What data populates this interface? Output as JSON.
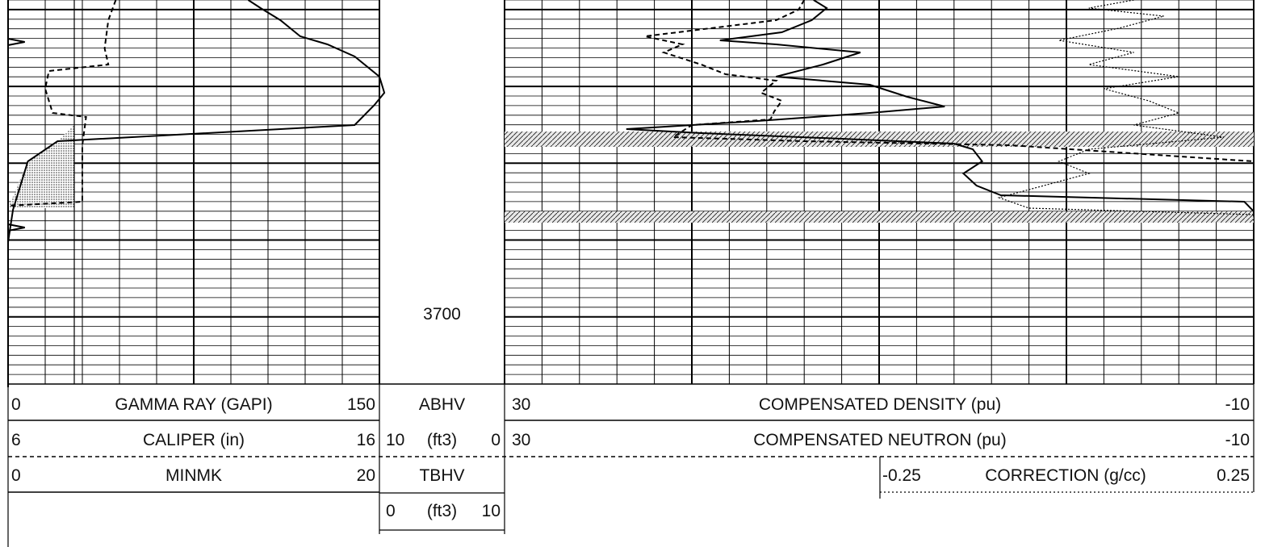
{
  "colors": {
    "ink": "#000000",
    "grid": "#1a1a1a",
    "shade": "#bdbdbd",
    "paper": "#ffffff"
  },
  "depth": {
    "label": "3700"
  },
  "header": {
    "gamma_ray": {
      "min": "0",
      "title": "GAMMA RAY (GAPI)",
      "max": "150"
    },
    "caliper": {
      "min": "6",
      "title": "CALIPER (in)",
      "max": "16"
    },
    "minmk": {
      "min": "0",
      "title": "MINMK",
      "max": "20"
    },
    "abhv": {
      "title": "ABHV",
      "min": "10",
      "unit": "(ft3)",
      "max": "0"
    },
    "tbhv": {
      "title": "TBHV",
      "min": "0",
      "unit": "(ft3)",
      "max": "10"
    },
    "density": {
      "min": "30",
      "title": "COMPENSATED DENSITY (pu)",
      "max": "-10"
    },
    "neutron": {
      "min": "30",
      "title": "COMPENSATED NEUTRON (pu)",
      "max": "-10"
    },
    "correction": {
      "min": "-0.25",
      "title": "CORRECTION (g/cc)",
      "max": "0.25"
    }
  },
  "chart_data": {
    "type": "line",
    "depth_axis": {
      "label": "3700",
      "direction": "down"
    },
    "tracks": [
      {
        "name": "track-1",
        "series": [
          {
            "name": "GAMMA RAY (GAPI)",
            "range": [
              0,
              150
            ],
            "line": "solid",
            "points": [
              [
                0,
                97
              ],
              [
                10,
                102
              ],
              [
                25,
                110
              ],
              [
                45,
                118
              ],
              [
                55,
                129
              ],
              [
                70,
                140
              ],
              [
                95,
                150
              ],
              [
                115,
                152
              ],
              [
                130,
                148
              ],
              [
                155,
                140
              ],
              [
                175,
                20
              ],
              [
                200,
                8
              ],
              [
                260,
                2
              ],
              [
                300,
                0
              ],
              [
                480,
                0
              ]
            ]
          },
          {
            "name": "CALIPER (in)",
            "range": [
              6,
              16
            ],
            "line": "dashed",
            "points": [
              [
                0,
                8.9
              ],
              [
                25,
                8.7
              ],
              [
                60,
                8.6
              ],
              [
                80,
                8.7
              ],
              [
                88,
                7.1
              ],
              [
                110,
                7.0
              ],
              [
                140,
                7.2
              ],
              [
                145,
                8.1
              ],
              [
                180,
                8.0
              ],
              [
                250,
                8.0
              ],
              [
                255,
                6.0
              ],
              [
                480,
                6.0
              ]
            ]
          },
          {
            "name": "MINMK",
            "range": [
              0,
              20
            ],
            "line": "solid",
            "points": [
              [
                48,
                0.0
              ],
              [
                52,
                0.9
              ],
              [
                56,
                0.0
              ],
              [
                278,
                0.0
              ],
              [
                282,
                0.9
              ],
              [
                286,
                0.0
              ]
            ]
          }
        ],
        "shading": {
          "between": [
            "GAMMA RAY (GAPI)",
            "bit size"
          ],
          "depth_range": [
            85,
            258
          ]
        }
      },
      {
        "name": "track-2",
        "series": [
          {
            "name": "ABHV",
            "range": [
              10,
              0
            ],
            "unit": "ft3",
            "points": []
          },
          {
            "name": "TBHV",
            "range": [
              0,
              10
            ],
            "unit": "ft3",
            "points": []
          }
        ]
      },
      {
        "name": "track-3",
        "series": [
          {
            "name": "COMPENSATED DENSITY (pu)",
            "range": [
              30,
              -10
            ],
            "line": "solid",
            "points": [
              [
                0,
                13.5
              ],
              [
                10,
                12.8
              ],
              [
                25,
                13.6
              ],
              [
                40,
                15.2
              ],
              [
                50,
                18.5
              ],
              [
                55,
                15.5
              ],
              [
                65,
                11.0
              ],
              [
                80,
                13.0
              ],
              [
                95,
                15.5
              ],
              [
                105,
                10.5
              ],
              [
                120,
                8.5
              ],
              [
                132,
                6.5
              ],
              [
                140,
                10.5
              ],
              [
                150,
                16.5
              ],
              [
                160,
                23.5
              ],
              [
                165,
                19.5
              ],
              [
                172,
                12.0
              ],
              [
                178,
                6.0
              ],
              [
                185,
                5.0
              ],
              [
                200,
                4.5
              ],
              [
                215,
                5.5
              ],
              [
                230,
                4.8
              ],
              [
                242,
                3.5
              ],
              [
                250,
                -9.5
              ],
              [
                262,
                -10.0
              ],
              [
                268,
                -10.0
              ]
            ]
          },
          {
            "name": "COMPENSATED NEUTRON (pu)",
            "range": [
              30,
              -10
            ],
            "line": "dashed",
            "points": [
              [
                0,
                14.0
              ],
              [
                12,
                14.3
              ],
              [
                25,
                15.5
              ],
              [
                45,
                22.5
              ],
              [
                55,
                20.5
              ],
              [
                65,
                21.5
              ],
              [
                80,
                19.5
              ],
              [
                92,
                18.2
              ],
              [
                100,
                15.5
              ],
              [
                115,
                16.3
              ],
              [
                125,
                15.2
              ],
              [
                138,
                15.6
              ],
              [
                148,
                15.8
              ],
              [
                155,
                20.0
              ],
              [
                170,
                21.0
              ],
              [
                175,
                14.0
              ],
              [
                180,
                3.0
              ],
              [
                200,
                -10.0
              ],
              [
                265,
                -10.0
              ]
            ]
          },
          {
            "name": "CORRECTION (g/cc)",
            "range": [
              -0.25,
              0.25
            ],
            "line": "dotted",
            "points": [
              [
                0,
                0.17
              ],
              [
                10,
                0.14
              ],
              [
                20,
                0.19
              ],
              [
                35,
                0.16
              ],
              [
                50,
                0.12
              ],
              [
                65,
                0.17
              ],
              [
                80,
                0.14
              ],
              [
                95,
                0.2
              ],
              [
                110,
                0.15
              ],
              [
                125,
                0.18
              ],
              [
                140,
                0.2
              ],
              [
                155,
                0.17
              ],
              [
                170,
                0.23
              ],
              [
                185,
                0.14
              ],
              [
                200,
                0.12
              ],
              [
                215,
                0.14
              ],
              [
                230,
                0.11
              ],
              [
                245,
                0.08
              ],
              [
                258,
                0.1
              ],
              [
                266,
                0.25
              ],
              [
                275,
                0.25
              ]
            ]
          }
        ],
        "hatched_bands": [
          [
            163,
            182
          ],
          [
            262,
            276
          ]
        ]
      }
    ],
    "grid": true
  }
}
